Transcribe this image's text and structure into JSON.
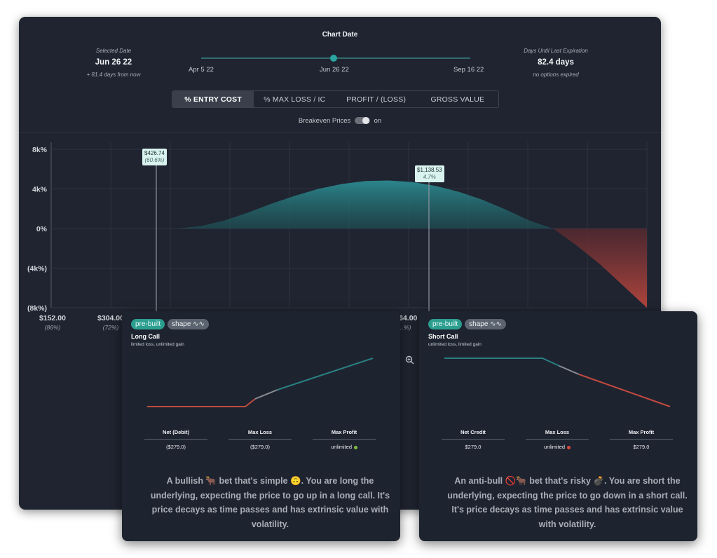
{
  "header": {
    "chart_date_title": "Chart Date",
    "selected_label": "Selected Date",
    "selected_value": "Jun 26 22",
    "selected_sub": "+ 81.4 days from now",
    "days_label": "Days Until Last Expiration",
    "days_value": "82.4 days",
    "days_sub": "no options expired",
    "slider_start": "Apr 5 22",
    "slider_mid": "Jun 26 22",
    "slider_end": "Sep 16 22",
    "slider_position_fraction": 0.5
  },
  "tabs": [
    "% ENTRY COST",
    "% MAX LOSS / IC",
    "PROFIT / (LOSS)",
    "GROSS VALUE"
  ],
  "active_tab": 0,
  "breakeven": {
    "label": "Breakeven Prices",
    "state": "on"
  },
  "colors": {
    "profit": "#2b7f86",
    "loss": "#b8463e",
    "accent": "#2aa5a0"
  },
  "chart_data": {
    "type": "area",
    "y_ticks": [
      "8k%",
      "4k%",
      "0%",
      "(4k%)",
      "(8k%)"
    ],
    "y_values": [
      8000,
      4000,
      0,
      -4000,
      -8000
    ],
    "x_ticks": [
      {
        "price": "$152.00",
        "pct": "(86%)"
      },
      {
        "price": "$304.00",
        "pct": "(72%)"
      },
      {
        "price": "…64.00",
        "pct": "…%)"
      }
    ],
    "breakevens": [
      {
        "price": "$426.74",
        "pct": "(60.6%)"
      },
      {
        "price": "$1,138.53",
        "pct": "4.7%"
      }
    ],
    "series": [
      {
        "x": [
          0,
          0.05,
          0.1,
          0.15,
          0.2,
          0.25,
          0.3,
          0.35,
          0.4,
          0.45,
          0.5,
          0.55,
          0.6,
          0.65,
          0.7,
          0.75,
          0.8,
          0.85,
          0.9,
          0.95,
          1.0
        ],
        "y": [
          0,
          250,
          800,
          1600,
          2500,
          3300,
          4000,
          4500,
          4800,
          4850,
          4700,
          4300,
          3700,
          2900,
          1900,
          800,
          0,
          -1700,
          -3600,
          -5800,
          -8000
        ]
      }
    ],
    "ylim": [
      -8000,
      8000
    ]
  },
  "zoom_label": "n",
  "cards": [
    {
      "tag1": "pre-built",
      "tag2": "shape ∿∿",
      "name": "Long Call",
      "desc": "limited loss, unlimited gain",
      "metrics": [
        {
          "h": "Net (Debit)",
          "v": "($279.0)"
        },
        {
          "h": "Max Loss",
          "v": "($279.0)"
        },
        {
          "h": "Max Profit",
          "v": "unlimited"
        }
      ],
      "text": "A bullish 🐂 bet that's simple 🙃. You are long the underlying, expecting the price to go up in a long call. It's price decays as time passes and has extrinsic value with volatility."
    },
    {
      "tag1": "pre-built",
      "tag2": "shape ∿∿",
      "name": "Short Call",
      "desc": "unlimited loss, limited gain",
      "metrics": [
        {
          "h": "Net Credit",
          "v": "$279.0"
        },
        {
          "h": "Max Loss",
          "v": "unlimited"
        },
        {
          "h": "Max Profit",
          "v": "$279.0"
        }
      ],
      "text": "An anti-bull 🚫🐂 bet that's risky 💣. You are short the underlying, expecting the price to go down in a short call. It's price decays as time passes and has extrinsic value with volatility."
    }
  ]
}
